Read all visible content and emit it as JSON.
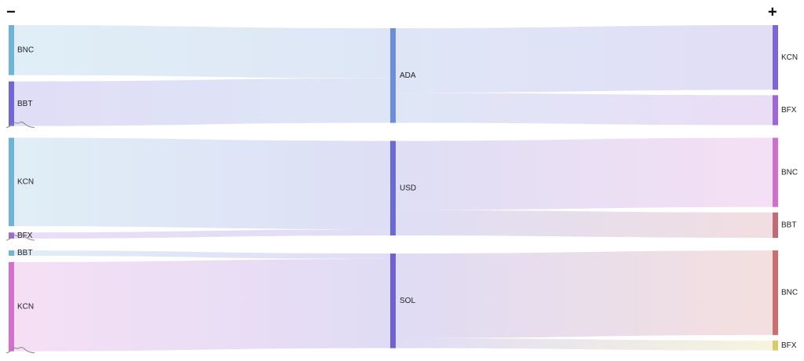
{
  "controls": {
    "collapse": "−",
    "expand": "+"
  },
  "chart_data": {
    "type": "sankey",
    "groups": [
      {
        "name": "ADA",
        "color": "#6b8fd6",
        "inputs": [
          {
            "name": "BNC",
            "value": 65,
            "color": "#6fb3d9"
          },
          {
            "name": "BBT",
            "value": 58,
            "color": "#7166d6"
          }
        ],
        "outputs": [
          {
            "name": "KCN",
            "value": 84,
            "color": "#7a66d6"
          },
          {
            "name": "BFX",
            "value": 39,
            "color": "#a066d6"
          }
        ]
      },
      {
        "name": "USD",
        "color": "#6a6ad0",
        "inputs": [
          {
            "name": "KCN",
            "value": 115,
            "color": "#6fb3d9"
          },
          {
            "name": "BFX",
            "value": 8,
            "color": "#a06ad6"
          }
        ],
        "outputs": [
          {
            "name": "BNC",
            "value": 90,
            "color": "#d070cc"
          },
          {
            "name": "BBT",
            "value": 33,
            "color": "#c06a78"
          }
        ]
      },
      {
        "name": "SOL",
        "color": "#7060d0",
        "inputs": [
          {
            "name": "BBT",
            "value": 7,
            "color": "#6fb3d9"
          },
          {
            "name": "KCN",
            "value": 116,
            "color": "#d46fd0"
          }
        ],
        "outputs": [
          {
            "name": "BNC",
            "value": 110,
            "color": "#cc6e6e"
          },
          {
            "name": "BFX",
            "value": 13,
            "color": "#d8cc6a"
          }
        ]
      }
    ]
  }
}
